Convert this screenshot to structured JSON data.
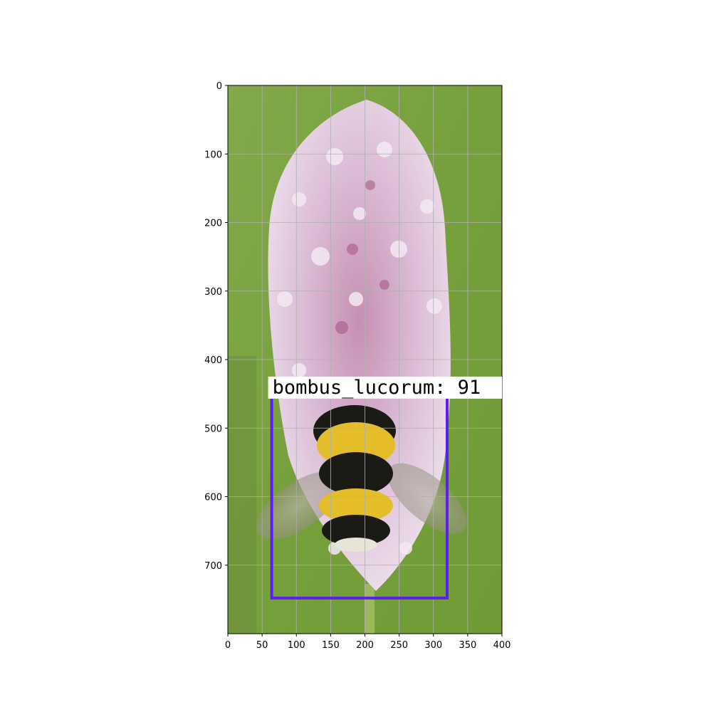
{
  "image": {
    "x_range": [
      0,
      400
    ],
    "y_range": [
      0,
      800
    ],
    "y_inverted": true,
    "grid": true,
    "x_ticks": [
      {
        "value": 0,
        "label": "0"
      },
      {
        "value": 50,
        "label": "50"
      },
      {
        "value": 100,
        "label": "100"
      },
      {
        "value": 150,
        "label": "150"
      },
      {
        "value": 200,
        "label": "200"
      },
      {
        "value": 250,
        "label": "250"
      },
      {
        "value": 300,
        "label": "300"
      },
      {
        "value": 350,
        "label": "350"
      },
      {
        "value": 400,
        "label": "400"
      }
    ],
    "y_ticks": [
      {
        "value": 0,
        "label": "0"
      },
      {
        "value": 100,
        "label": "100"
      },
      {
        "value": 200,
        "label": "200"
      },
      {
        "value": 300,
        "label": "300"
      },
      {
        "value": 400,
        "label": "400"
      },
      {
        "value": 500,
        "label": "500"
      },
      {
        "value": 600,
        "label": "600"
      },
      {
        "value": 700,
        "label": "700"
      }
    ],
    "detection": {
      "label": "bombus_lucorum: 91",
      "box_color": "#5b1ff0",
      "box": {
        "x_min": 64,
        "y_min": 455,
        "x_max": 320,
        "y_max": 748
      }
    },
    "colors": {
      "background_green": "#7aa040",
      "flower_pink": "#dcbfd8",
      "bee_black": "#1b1b16",
      "bee_yellow": "#e4bd2a"
    }
  }
}
